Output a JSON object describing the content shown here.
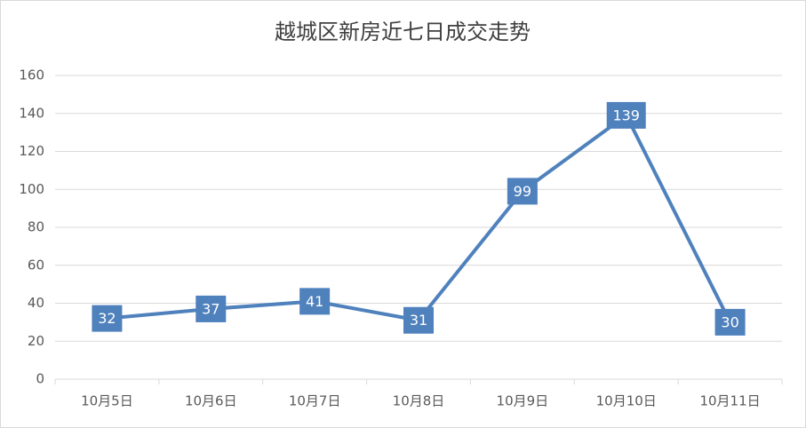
{
  "chart_data": {
    "type": "line",
    "title": "越城区新房近七日成交走势",
    "categories": [
      "10月5日",
      "10月6日",
      "10月7日",
      "10月8日",
      "10月9日",
      "10月10日",
      "10月11日"
    ],
    "values": [
      32,
      37,
      41,
      31,
      99,
      139,
      30
    ],
    "color": "#4f81bd",
    "ylim": [
      0,
      160
    ],
    "yticks": [
      0,
      20,
      40,
      60,
      80,
      100,
      120,
      140,
      160
    ],
    "grid": true
  }
}
